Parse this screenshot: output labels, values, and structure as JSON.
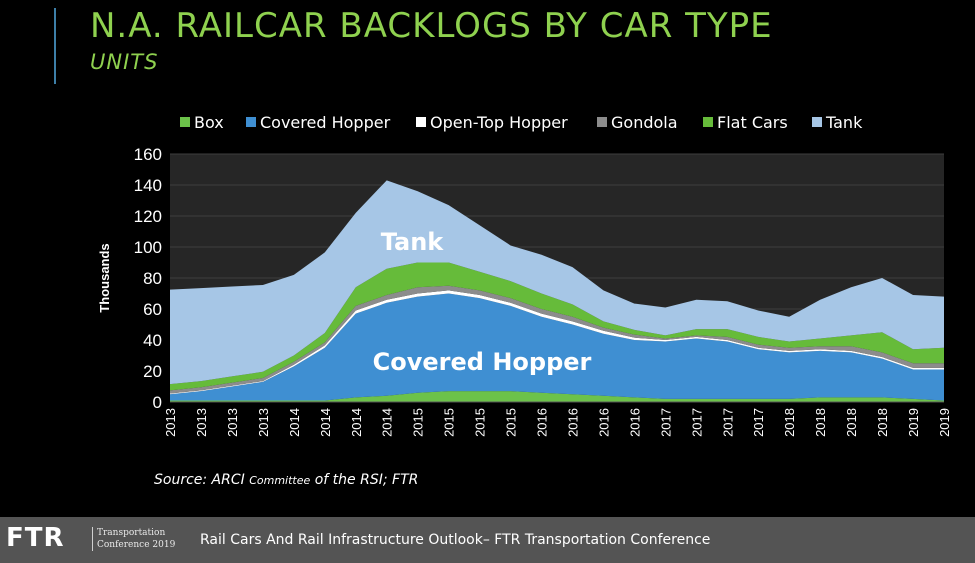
{
  "slide": {
    "title": "N.A. RAILCAR BACKLOGS BY CAR TYPE",
    "subtitle": "UNITS",
    "source_prefix": "Source: ARCI ",
    "source_small": "Committee",
    "source_suffix": " of the RSI; FTR"
  },
  "footer": {
    "logo": "FTR",
    "tag_line1": "Transportation",
    "tag_line2": "Conference 2019",
    "text": "Rail Cars And Rail Infrastructure Outlook– FTR Transportation Conference"
  },
  "colors": {
    "background": "#000000",
    "title": "#8fd14f",
    "box": "#6cc24a",
    "covered_hopper": "#3f8fd2",
    "open_top_hopper": "#ffffff",
    "gondola": "#8c8c8c",
    "flat_cars": "#66bb3a",
    "tank": "#a6c6e6",
    "footer": "#545454"
  },
  "chart_data": {
    "type": "area",
    "stacked": true,
    "ylabel": "Thousands",
    "ylim": [
      0,
      160
    ],
    "yticks": [
      0,
      20,
      40,
      60,
      80,
      100,
      120,
      140,
      160
    ],
    "legend_position": "top",
    "x": [
      "2013",
      "2013",
      "2013",
      "2013",
      "2014",
      "2014",
      "2014",
      "2014",
      "2015",
      "2015",
      "2015",
      "2015",
      "2016",
      "2016",
      "2016",
      "2016",
      "2017",
      "2017",
      "2017",
      "2017",
      "2018",
      "2018",
      "2018",
      "2018",
      "2019",
      "2019"
    ],
    "series": [
      {
        "name": "Box",
        "color": "#6cc24a",
        "values": [
          1,
          1,
          1,
          1,
          1,
          1,
          3,
          4,
          6,
          7,
          7,
          7,
          6,
          5,
          4,
          3,
          2,
          2,
          2,
          2,
          2,
          3,
          3,
          3,
          2,
          1
        ]
      },
      {
        "name": "Covered Hopper",
        "color": "#3f8fd2",
        "values": [
          4,
          6,
          9,
          12,
          22,
          34,
          54,
          60,
          62,
          63,
          60,
          55,
          49,
          45,
          40,
          37,
          37,
          39,
          37,
          32,
          30,
          30,
          29,
          25,
          19,
          20
        ]
      },
      {
        "name": "Open-Top Hopper",
        "color": "#ffffff",
        "values": [
          0.5,
          0.5,
          0.5,
          0.5,
          1,
          1.5,
          2,
          2,
          2,
          2,
          2,
          2,
          2,
          2,
          2,
          1.5,
          1,
          1,
          1,
          1,
          1,
          1,
          1,
          1,
          1,
          1
        ]
      },
      {
        "name": "Gondola",
        "color": "#8c8c8c",
        "values": [
          2,
          2,
          2,
          2,
          2,
          2,
          3,
          3,
          4,
          3,
          3,
          3,
          3,
          3,
          2,
          2,
          1,
          1,
          2,
          2,
          2,
          2,
          3,
          3,
          3,
          3
        ]
      },
      {
        "name": "Flat Cars",
        "color": "#66bb3a",
        "values": [
          4,
          4,
          4,
          4,
          4,
          6,
          12,
          17,
          16,
          15,
          12,
          11,
          10,
          8,
          4,
          3,
          2,
          4,
          5,
          5,
          4,
          5,
          7,
          13,
          9,
          10
        ]
      },
      {
        "name": "Tank",
        "color": "#a6c6e6",
        "values": [
          61,
          60,
          58,
          56,
          52,
          52,
          48,
          57,
          46,
          37,
          30,
          23,
          25,
          24,
          20,
          17,
          18,
          19,
          18,
          17,
          16,
          25,
          31,
          35,
          35,
          33
        ]
      }
    ],
    "annotations": [
      "Tank",
      "Covered Hopper"
    ]
  }
}
